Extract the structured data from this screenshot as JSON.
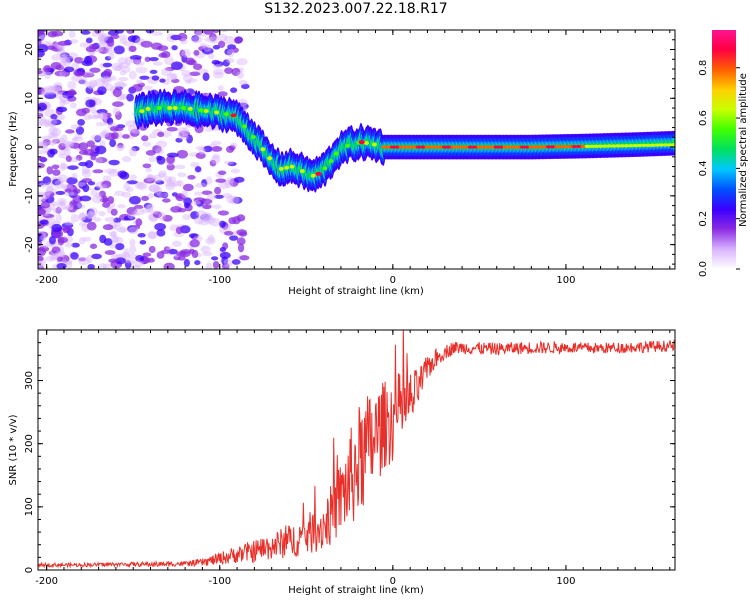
{
  "figure": {
    "title": "S132.2023.007.22.18.R17"
  },
  "colors": {
    "axis": "#000000",
    "snr_line": "#e8302a",
    "colormap": [
      "#ffffff",
      "#d9b3ff",
      "#8a2be2",
      "#3a00ff",
      "#0050ff",
      "#00c8ff",
      "#00e060",
      "#40ff00",
      "#c8ff00",
      "#ffd000",
      "#ff6000",
      "#ff0040",
      "#ff1493"
    ]
  },
  "chart_data": [
    {
      "id": "spectrogram",
      "type": "heatmap",
      "title": "",
      "xlabel": "Height of straight line (km)",
      "ylabel": "Frequency (Hz)",
      "xlim": [
        -205,
        163
      ],
      "ylim": [
        -25,
        24
      ],
      "xticks": [
        -200,
        -100,
        0,
        100
      ],
      "xtick_labels": [
        "-200",
        "-100",
        "0",
        "100"
      ],
      "yticks": [
        -20,
        -10,
        0,
        10,
        20
      ],
      "ytick_labels": [
        "-20",
        "-10",
        "0",
        "10",
        "20"
      ],
      "colorbar": {
        "label": "Normalized spectral amplitude",
        "range": [
          0.0,
          0.95
        ],
        "ticks": [
          0.0,
          0.2,
          0.4,
          0.6,
          0.8
        ],
        "tick_labels": [
          "0.0",
          "0.2",
          "0.4",
          "0.6",
          "0.8"
        ]
      },
      "ridge": {
        "x": [
          -148,
          -140,
          -130,
          -120,
          -110,
          -100,
          -92,
          -85,
          -78,
          -72,
          -65,
          -58,
          -52,
          -47,
          -43,
          -38,
          -32,
          -25,
          -18,
          -10,
          -5,
          0,
          20,
          50,
          80,
          110,
          140,
          163
        ],
        "y": [
          7,
          8,
          8,
          8,
          7.5,
          7,
          6.5,
          4,
          1,
          -2,
          -4.5,
          -4,
          -5,
          -6,
          -5.5,
          -4,
          -1,
          0.5,
          1,
          0.5,
          0,
          0,
          0,
          0,
          0,
          0.2,
          0.5,
          0.8
        ]
      }
    },
    {
      "id": "snr",
      "type": "line",
      "title": "",
      "xlabel": "Height of straight line (km)",
      "ylabel": "SNR (10 * v/v)",
      "xlim": [
        -205,
        163
      ],
      "ylim": [
        0,
        380
      ],
      "xticks": [
        -200,
        -100,
        0,
        100
      ],
      "xtick_labels": [
        "-200",
        "-100",
        "0",
        "100"
      ],
      "yticks": [
        0,
        100,
        200,
        300
      ],
      "ytick_labels": [
        "0",
        "100",
        "200",
        "300"
      ],
      "series": [
        {
          "name": "SNR",
          "x": [
            -205,
            -180,
            -160,
            -140,
            -120,
            -110,
            -100,
            -90,
            -80,
            -70,
            -60,
            -50,
            -40,
            -35,
            -30,
            -25,
            -20,
            -15,
            -10,
            -5,
            0,
            5,
            10,
            15,
            20,
            25,
            30,
            35,
            40,
            60,
            80,
            100,
            120,
            140,
            163
          ],
          "y": [
            8,
            8,
            9,
            9,
            10,
            12,
            18,
            25,
            30,
            38,
            45,
            55,
            70,
            90,
            115,
            140,
            170,
            190,
            210,
            230,
            240,
            255,
            265,
            290,
            320,
            335,
            345,
            352,
            352,
            350,
            352,
            352,
            351,
            353,
            355
          ],
          "noise": [
            3,
            3,
            3,
            4,
            4,
            6,
            10,
            14,
            18,
            22,
            26,
            32,
            40,
            50,
            60,
            80,
            90,
            90,
            80,
            70,
            70,
            60,
            50,
            30,
            20,
            15,
            12,
            10,
            10,
            10,
            10,
            9,
            9,
            9,
            9
          ]
        }
      ]
    }
  ]
}
